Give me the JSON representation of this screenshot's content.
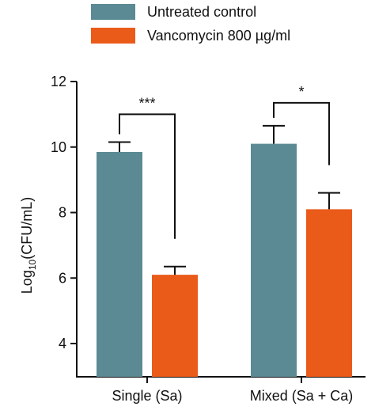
{
  "chart_data": {
    "type": "bar",
    "title": "",
    "xlabel": "",
    "ylabel": {
      "prefix": "Log",
      "subscript": "10",
      "suffix": "(CFU/mL)"
    },
    "ylim": [
      3,
      12
    ],
    "yticks": [
      4,
      6,
      8,
      10,
      12
    ],
    "categories": [
      "Single (Sa)",
      "Mixed (Sa + Ca)"
    ],
    "series": [
      {
        "name": "Untreated control",
        "color": "#5b8a94",
        "values": [
          9.85,
          10.1
        ],
        "errors": [
          0.3,
          0.55
        ]
      },
      {
        "name": "Vancomycin 800 µg/ml",
        "color": "#ea5b1a",
        "values": [
          6.1,
          8.1
        ],
        "errors": [
          0.25,
          0.5
        ]
      }
    ],
    "significance": [
      {
        "category": 0,
        "label": "***",
        "y": 11.0
      },
      {
        "category": 1,
        "label": "*",
        "y": 11.35
      }
    ],
    "legend_position": "top",
    "grid": false
  }
}
